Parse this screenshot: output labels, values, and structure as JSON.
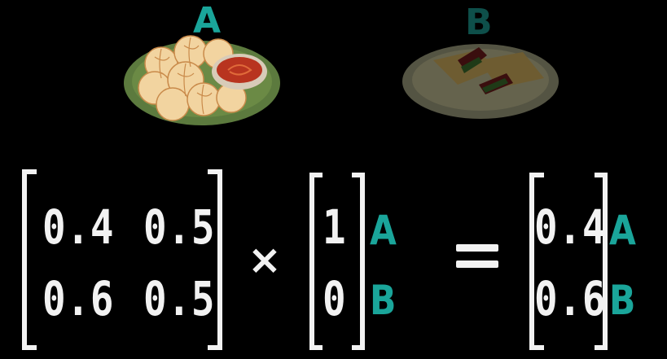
{
  "labels": {
    "food_a": "A",
    "food_b": "B"
  },
  "colors": {
    "accent": "#1aa59a",
    "text": "#f2f2f2",
    "background": "#000000"
  },
  "matrix": {
    "rows": [
      [
        "0.4",
        "0.5"
      ],
      [
        "0.6",
        "0.5"
      ]
    ]
  },
  "operator_multiply": "×",
  "vector": {
    "values": [
      "1",
      "0"
    ],
    "tags": [
      "A",
      "B"
    ]
  },
  "operator_equals": "=",
  "result": {
    "values": [
      "0.4",
      "0.6"
    ],
    "tags": [
      "A",
      "B"
    ]
  },
  "icons": {
    "food_a": "momo-dumplings-plate-icon",
    "food_b": "sandwich-plate-icon"
  }
}
